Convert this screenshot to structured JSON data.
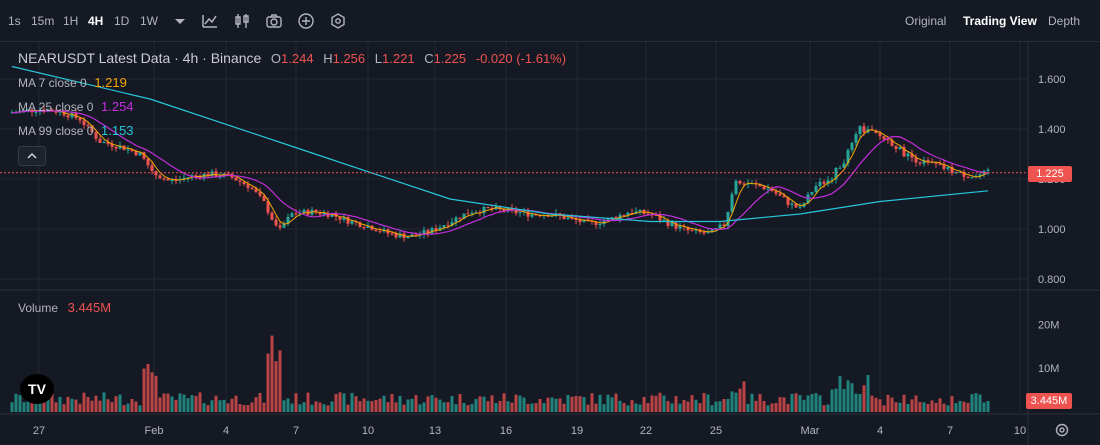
{
  "toolbar": {
    "timeframes": [
      "1s",
      "15m",
      "1H",
      "4H",
      "1D",
      "1W"
    ],
    "active_timeframe": "4H",
    "views": [
      "Original",
      "Trading View",
      "Depth"
    ],
    "active_view": "Trading View"
  },
  "legend": {
    "symbol_title": "NEARUSDT Latest Data · 4h · Binance",
    "ohlc": {
      "o_label": "O",
      "o": "1.244",
      "h_label": "H",
      "h": "1.256",
      "l_label": "L",
      "l": "1.221",
      "c_label": "C",
      "c": "1.225",
      "change": "-0.020 (-1.61%)"
    },
    "ma7": {
      "label": "MA 7 close 0",
      "value": "1.219",
      "color": "#f7a600"
    },
    "ma25": {
      "label": "MA 25 close 0",
      "value": "1.254",
      "color": "#c22edb"
    },
    "ma99": {
      "label": "MA 99 close 0",
      "value": "1.153",
      "color": "#26c6da"
    }
  },
  "price_axis": {
    "ticks": [
      "1.600",
      "1.400",
      "1.200",
      "1.000",
      "0.800"
    ],
    "last_price": "1.225",
    "last_price_color": "#ef5350"
  },
  "volume": {
    "label": "Volume",
    "value": "3.445M",
    "ticks": [
      "20M",
      "10M"
    ],
    "last_volume": "3.445M"
  },
  "time_axis": {
    "labels": [
      "27",
      "Feb",
      "4",
      "7",
      "10",
      "13",
      "16",
      "19",
      "22",
      "25",
      "Mar",
      "4",
      "7",
      "10"
    ]
  },
  "colors": {
    "up": "#26a69a",
    "down": "#ef5350",
    "ma7": "#f7a600",
    "ma25": "#c22edb",
    "ma99": "#26c6da"
  },
  "logo_text": "TV"
}
